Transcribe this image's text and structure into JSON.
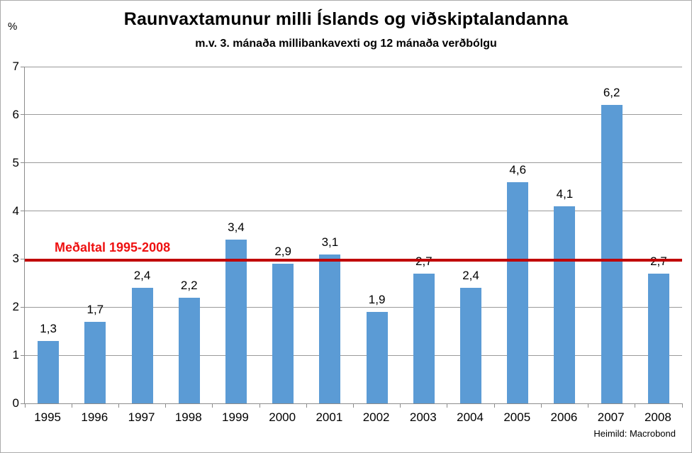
{
  "chart_data": {
    "type": "bar",
    "title": "Raunvaxtamunur milli Íslands og viðskiptalandanna",
    "subtitle": "m.v. 3. mánaða millibankavexti og 12 mánaða verðbólgu",
    "unit_label": "%",
    "categories": [
      "1995",
      "1996",
      "1997",
      "1998",
      "1999",
      "2000",
      "2001",
      "2002",
      "2003",
      "2004",
      "2005",
      "2006",
      "2007",
      "2008"
    ],
    "values": [
      1.3,
      1.7,
      2.4,
      2.2,
      3.4,
      2.9,
      3.1,
      1.9,
      2.7,
      2.4,
      4.6,
      4.1,
      6.2,
      2.7
    ],
    "value_labels": [
      "1,3",
      "1,7",
      "2,4",
      "2,2",
      "3,4",
      "2,9",
      "3,1",
      "1,9",
      "2,7",
      "2,4",
      "4,6",
      "4,1",
      "6,2",
      "2,7"
    ],
    "ylim": [
      0,
      7
    ],
    "yticks": [
      0,
      1,
      2,
      3,
      4,
      5,
      6,
      7
    ],
    "grid": true,
    "legend_position": "none",
    "bar_color": "#5b9bd5",
    "average_line": {
      "value": 2.97,
      "label": "Meðaltal 1995-2008",
      "line_color": "#c00000",
      "label_color": "#ee1111"
    },
    "source": "Heimild: Macrobond"
  }
}
